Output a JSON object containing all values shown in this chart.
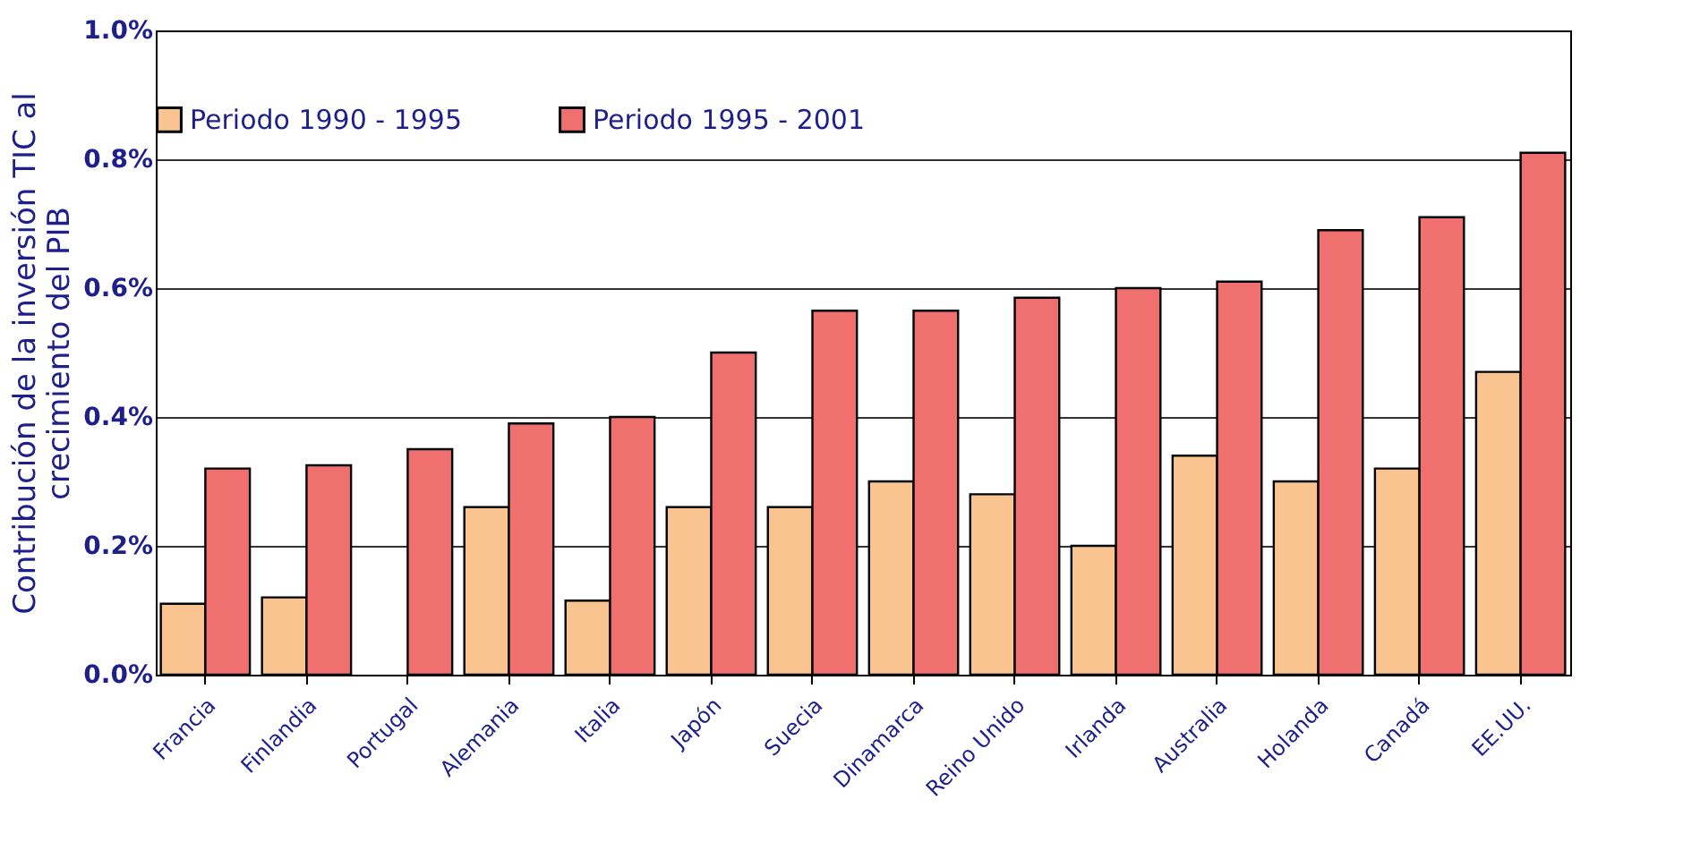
{
  "chart_data": {
    "type": "bar",
    "ylabel": "Contribución de la inversión TIC al\ncrecimiento del PIB",
    "categories": [
      "Francia",
      "Finlandia",
      "Portugal",
      "Alemania",
      "Italia",
      "Japón",
      "Suecia",
      "Dinamarca",
      "Reino Unido",
      "Irlanda",
      "Australia",
      "Holanda",
      "Canadá",
      "EE.UU."
    ],
    "series": [
      {
        "name": "Periodo 1990 - 1995",
        "color": "#f9c48f",
        "values": [
          0.11,
          0.12,
          null,
          0.26,
          0.115,
          0.26,
          0.26,
          0.3,
          0.28,
          0.2,
          0.34,
          0.3,
          0.32,
          0.47
        ]
      },
      {
        "name": "Periodo 1995 - 2001",
        "color": "#f07070",
        "values": [
          0.32,
          0.325,
          0.35,
          0.39,
          0.4,
          0.5,
          0.565,
          0.565,
          0.585,
          0.6,
          0.61,
          0.69,
          0.71,
          0.81
        ]
      }
    ],
    "ylim": [
      0,
      1.0
    ],
    "yticks": [
      {
        "value": 0,
        "label": "0.0%"
      },
      {
        "value": 0.2,
        "label": "0.2%"
      },
      {
        "value": 0.4,
        "label": "0.4%"
      },
      {
        "value": 0.6,
        "label": "0.6%"
      },
      {
        "value": 0.8,
        "label": "0.8%"
      },
      {
        "value": 1.0,
        "label": "1.0%"
      }
    ],
    "grid": "y",
    "legend": "top"
  }
}
